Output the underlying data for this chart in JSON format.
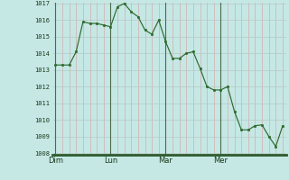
{
  "y_values": [
    1013.3,
    1013.3,
    1013.3,
    1014.1,
    1015.9,
    1015.8,
    1015.8,
    1015.7,
    1015.6,
    1016.8,
    1017.0,
    1016.5,
    1016.2,
    1015.4,
    1015.15,
    1016.0,
    1014.7,
    1013.7,
    1013.7,
    1014.0,
    1014.1,
    1013.1,
    1012.0,
    1011.8,
    1011.8,
    1012.0,
    1010.5,
    1009.4,
    1009.4,
    1009.65,
    1009.7,
    1009.0,
    1008.4,
    1009.65
  ],
  "x_tick_positions": [
    0,
    8,
    16,
    24
  ],
  "x_tick_labels": [
    "Dim",
    "Lun",
    "Mar",
    "Mer"
  ],
  "y_min": 1008,
  "y_max": 1017,
  "y_ticks": [
    1008,
    1009,
    1010,
    1011,
    1012,
    1013,
    1014,
    1015,
    1016,
    1017
  ],
  "line_color": "#2d6a2d",
  "marker_color": "#2d6a2d",
  "bg_color": "#c5e8e5",
  "grid_color_major": "#b0d4d0",
  "grid_color_minor": "#c0dcda",
  "axis_line_color": "#2d5a2d",
  "day_line_color": "#4a6a4a",
  "tick_label_color": "#1a3a1a",
  "bottom_bar_color": "#2d5a2d"
}
